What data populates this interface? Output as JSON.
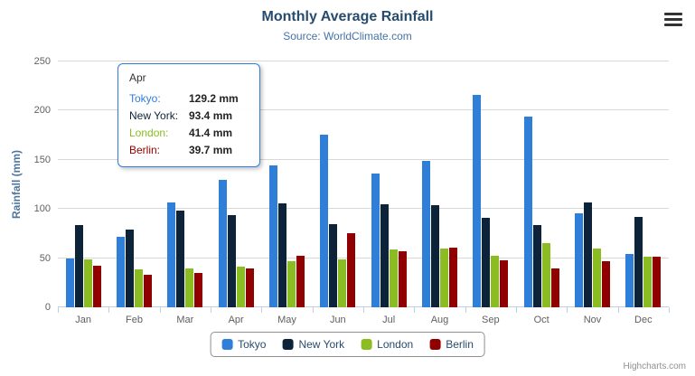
{
  "credits": "Highcharts.com",
  "tooltip": {
    "header": "Apr",
    "border_color": "#2f7ed8",
    "rows": [
      {
        "name": "Tokyo",
        "value": "129.2 mm"
      },
      {
        "name": "New York",
        "value": "93.4 mm"
      },
      {
        "name": "London",
        "value": "41.4 mm"
      },
      {
        "name": "Berlin",
        "value": "39.7 mm"
      }
    ]
  },
  "chart_data": {
    "type": "bar",
    "title": "Monthly Average Rainfall",
    "subtitle": "Source: WorldClimate.com",
    "ylabel": "Rainfall (mm)",
    "xlabel": "",
    "ylim": [
      0,
      250
    ],
    "yticks": [
      0,
      50,
      100,
      150,
      200,
      250
    ],
    "grid": true,
    "legend_position": "bottom",
    "categories": [
      "Jan",
      "Feb",
      "Mar",
      "Apr",
      "May",
      "Jun",
      "Jul",
      "Aug",
      "Sep",
      "Oct",
      "Nov",
      "Dec"
    ],
    "series": [
      {
        "name": "Tokyo",
        "color": "#2f7ed8",
        "values": [
          49.9,
          71.5,
          106.4,
          129.2,
          144.0,
          176.0,
          135.6,
          148.5,
          216.4,
          194.1,
          95.6,
          54.4
        ]
      },
      {
        "name": "New York",
        "color": "#0d233a",
        "values": [
          83.6,
          78.8,
          98.5,
          93.4,
          106.0,
          84.5,
          105.0,
          104.3,
          91.2,
          83.5,
          106.6,
          92.3
        ]
      },
      {
        "name": "London",
        "color": "#8bbc21",
        "values": [
          48.9,
          38.8,
          39.3,
          41.4,
          47.0,
          48.3,
          59.0,
          59.6,
          52.4,
          65.2,
          59.3,
          51.2
        ]
      },
      {
        "name": "Berlin",
        "color": "#910000",
        "values": [
          42.4,
          33.2,
          34.5,
          39.7,
          52.6,
          75.5,
          57.4,
          60.4,
          47.6,
          39.1,
          46.8,
          51.1
        ]
      }
    ]
  }
}
